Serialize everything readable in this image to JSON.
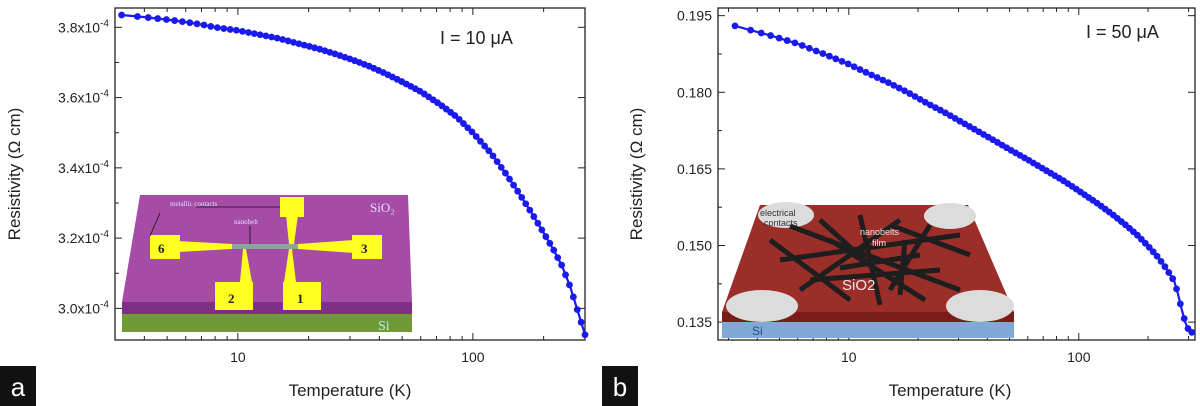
{
  "colors": {
    "series": "#1a1aee",
    "axis": "#222222",
    "inset_a_top": "#a64ca6",
    "inset_a_front": "#7e2f86",
    "inset_a_si": "#6f9a35",
    "inset_a_pad": "#ffff22",
    "inset_b_top": "#9c2e2a",
    "inset_b_front": "#7a1d1a",
    "inset_b_si": "#7fa9d6",
    "inset_b_contact": "#dcdcdc",
    "inset_b_belt": "#1e1e1e",
    "panel_letter_bg": "#111111"
  },
  "panel_a": {
    "letter": "a",
    "condition_label": "I = 10 μA",
    "inset": {
      "sio2_label": "SiO₂",
      "si_label": "Si",
      "metallic_label": "metallic contacts",
      "nanobelt_label": "nanobelt",
      "pads": [
        "6",
        "3",
        "2",
        "1"
      ]
    }
  },
  "panel_b": {
    "letter": "b",
    "condition_label": "I = 50 μA",
    "inset": {
      "sio2_label": "SiO2",
      "si_label": "Si",
      "contacts_label_1": "electrical",
      "contacts_label_2": "contacts",
      "film_label_1": "nanobelts",
      "film_label_2": "film"
    }
  },
  "chart_data": [
    {
      "type": "scatter",
      "xscale": "log",
      "xlabel": "Temperature (K)",
      "ylabel": "Resistivity (Ω cm)",
      "xlim": [
        3,
        300
      ],
      "ylim": [
        0.000291,
        0.0003855
      ],
      "x_ticks": [
        {
          "value": 10,
          "label": "10"
        },
        {
          "value": 100,
          "label": "100"
        }
      ],
      "y_ticks": [
        {
          "value": 0.0003,
          "label": "3.0x10-4"
        },
        {
          "value": 0.00032,
          "label": "3.2x10-4"
        },
        {
          "value": 0.00034,
          "label": "3.4x10-4"
        },
        {
          "value": 0.00036,
          "label": "3.6x10-4"
        },
        {
          "value": 0.00038,
          "label": "3.8x10-4"
        }
      ],
      "series": [
        {
          "x": [
            3.2,
            4,
            5,
            6,
            7,
            8,
            10,
            12,
            15,
            18,
            22,
            26,
            30,
            36,
            42,
            50,
            60,
            72,
            85,
            100,
            120,
            140,
            160,
            180,
            200,
            220,
            240,
            260,
            280,
            300
          ],
          "y": [
            0.0003835,
            0.0003829,
            0.0003822,
            0.0003815,
            0.0003808,
            0.00038,
            0.0003791,
            0.0003781,
            0.0003768,
            0.0003754,
            0.0003739,
            0.0003724,
            0.000371,
            0.000369,
            0.000367,
            0.0003645,
            0.0003617,
            0.0003582,
            0.0003546,
            0.00035,
            0.000344,
            0.0003378,
            0.000332,
            0.0003266,
            0.0003215,
            0.0003168,
            0.000312,
            0.000306,
            0.000299,
            0.0002925
          ]
        }
      ]
    },
    {
      "type": "scatter",
      "xscale": "log",
      "xlabel": "Temperature (K)",
      "ylabel": "Resistivity (Ω cm)",
      "xlim": [
        2.7,
        320
      ],
      "ylim": [
        0.1315,
        0.1965
      ],
      "x_ticks": [
        {
          "value": 10,
          "label": "10"
        },
        {
          "value": 100,
          "label": "100"
        }
      ],
      "y_ticks": [
        {
          "value": 0.135,
          "label": "0.135"
        },
        {
          "value": 0.15,
          "label": "0.150"
        },
        {
          "value": 0.165,
          "label": "0.165"
        },
        {
          "value": 0.18,
          "label": "0.180"
        },
        {
          "value": 0.195,
          "label": "0.195"
        }
      ],
      "series": [
        {
          "x": [
            3.2,
            4.5,
            6,
            8,
            10,
            12,
            15,
            18,
            22,
            26,
            30,
            36,
            42,
            50,
            60,
            72,
            85,
            100,
            120,
            140,
            160,
            180,
            200,
            220,
            240,
            260,
            270,
            280,
            290,
            300,
            310
          ],
          "y": [
            0.193,
            0.1912,
            0.1895,
            0.1873,
            0.1855,
            0.1838,
            0.1818,
            0.18,
            0.1778,
            0.1761,
            0.1745,
            0.1725,
            0.1708,
            0.1688,
            0.1668,
            0.1647,
            0.1628,
            0.1607,
            0.1583,
            0.1561,
            0.154,
            0.152,
            0.1499,
            0.1478,
            0.1455,
            0.143,
            0.1405,
            0.1375,
            0.135,
            0.1335,
            0.133
          ]
        }
      ]
    }
  ]
}
